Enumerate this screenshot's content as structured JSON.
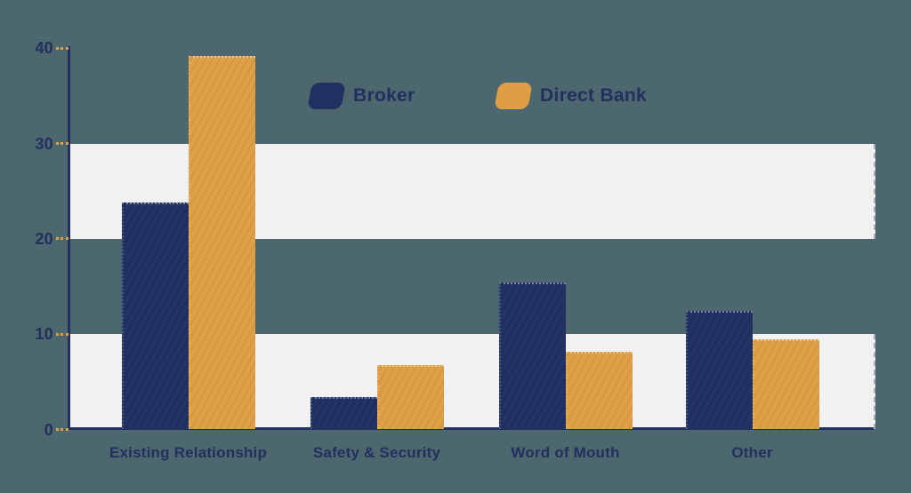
{
  "colors": {
    "background": "#4c676e",
    "band": "#f2f1f2",
    "axis": "#22305f",
    "text": "#22305f",
    "tick": "#df9e44",
    "broker": "#1f3061",
    "direct_bank": "#df9e44"
  },
  "chart_data": {
    "type": "bar",
    "title": "",
    "xlabel": "",
    "ylabel": "",
    "categories": [
      "Existing Relationship",
      "Safety & Security",
      "Word of Mouth",
      "Other"
    ],
    "series": [
      {
        "name": "Broker",
        "color": "#1f3061",
        "values": [
          23.8,
          3.4,
          15.4,
          12.4
        ]
      },
      {
        "name": "Direct Bank",
        "color": "#df9e44",
        "values": [
          39.2,
          6.8,
          8.2,
          9.5
        ]
      }
    ],
    "ylim": [
      0,
      40
    ],
    "yticks": [
      0,
      10,
      20,
      30,
      40
    ],
    "grid": "off",
    "background_bands": [
      [
        0,
        10
      ],
      [
        20,
        30
      ]
    ],
    "legend_position": "top-center"
  }
}
